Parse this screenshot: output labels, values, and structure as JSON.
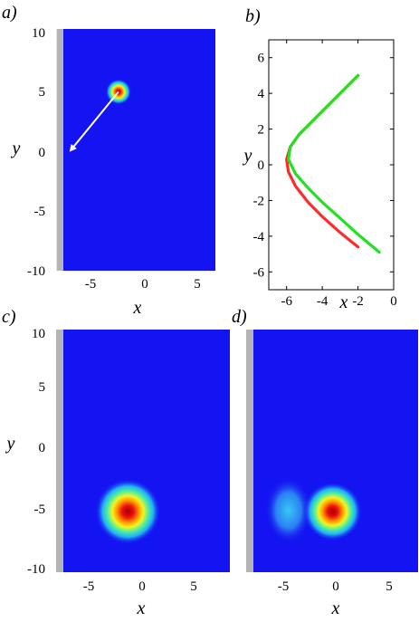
{
  "colors": {
    "field": "#1414f2",
    "wall": "#b4b4b4",
    "arrow": "#ffffff",
    "trajectory_a": "#ff2a2a",
    "trajectory_b": "#22e022"
  },
  "chart_data": [
    {
      "panel": "a)",
      "type": "heatmap",
      "xlabel": "x",
      "ylabel": "y",
      "xlim": [
        -8,
        8
      ],
      "ylim": [
        -10,
        10
      ],
      "x_ticks": [
        "-5",
        "0",
        "5"
      ],
      "y_ticks": [
        "10",
        "5",
        "0",
        "-5",
        "-10"
      ],
      "wall": {
        "x_range": [
          -8.7,
          -8.0
        ]
      },
      "blob": {
        "center": [
          -2.2,
          4.8
        ],
        "sigma": 0.45
      },
      "arrow": {
        "from": [
          -2.2,
          4.8
        ],
        "to": [
          -8.0,
          -0.5
        ]
      }
    },
    {
      "panel": "b)",
      "type": "line",
      "xlabel": "x",
      "ylabel": "y",
      "xlim": [
        -7,
        0
      ],
      "ylim": [
        -7,
        7
      ],
      "x_ticks": [
        "-6",
        "-4",
        "-2",
        "0"
      ],
      "y_ticks": [
        "6",
        "4",
        "2",
        "0",
        "-2",
        "-4",
        "-6"
      ],
      "series": [
        {
          "color": "red",
          "x": [
            -2.0,
            -3.0,
            -4.0,
            -4.8,
            -5.5,
            -5.9,
            -6.0,
            -5.8,
            -5.3,
            -4.7,
            -4.0,
            -3.2,
            -2.0
          ],
          "y": [
            -4.6,
            -3.8,
            -2.9,
            -2.1,
            -1.2,
            -0.4,
            0.3,
            1.0,
            1.7,
            2.3,
            3.0,
            3.8,
            5.0
          ]
        },
        {
          "color": "green",
          "x": [
            -0.8,
            -2.0,
            -3.0,
            -4.0,
            -4.8,
            -5.5,
            -5.9,
            -5.8,
            -5.3,
            -4.7,
            -4.0,
            -3.2,
            -2.0
          ],
          "y": [
            -4.9,
            -3.9,
            -3.0,
            -2.1,
            -1.3,
            -0.5,
            0.3,
            1.0,
            1.7,
            2.3,
            3.0,
            3.8,
            5.0
          ]
        }
      ]
    },
    {
      "panel": "c)",
      "type": "heatmap",
      "xlabel": "x",
      "ylabel": "y",
      "xlim": [
        -8,
        8
      ],
      "ylim": [
        -10,
        10
      ],
      "x_ticks": [
        "-5",
        "0",
        "5"
      ],
      "y_ticks": [
        "10",
        "5",
        "0",
        "-5",
        "-10"
      ],
      "wall": {
        "x_range": [
          -8.7,
          -8.0
        ]
      },
      "blob": {
        "center": [
          -1.8,
          -5.0
        ],
        "sigma": 1.05
      }
    },
    {
      "panel": "d)",
      "type": "heatmap",
      "xlabel": "x",
      "xlim": [
        -8,
        8
      ],
      "ylim": [
        -10,
        10
      ],
      "x_ticks": [
        "-5",
        "0",
        "5"
      ],
      "wall": {
        "x_range": [
          -8.7,
          -8.0
        ]
      },
      "blob": {
        "center": [
          -0.3,
          -5.0
        ],
        "sigma": 0.95
      },
      "tail": {
        "center": [
          -4.6,
          -4.9
        ],
        "sigma": 0.75,
        "strength": 0.35
      }
    }
  ]
}
